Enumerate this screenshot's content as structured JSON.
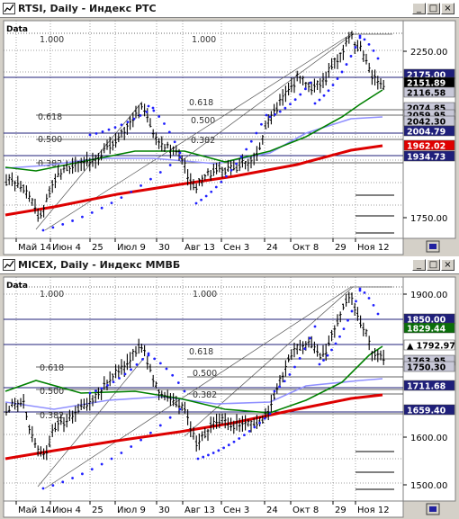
{
  "windows": [
    {
      "title": "RTSI, Daily - Индекс РТС",
      "data_label": "Data",
      "buttons": {
        "minimize": "_",
        "maximize": "□",
        "close": "×"
      },
      "scroll_icon": "scroll-right-icon",
      "fib_labels": [
        "1.000",
        "1.000",
        "0.618",
        "0.618",
        "0.500",
        "0.500",
        "0.382",
        "0.382"
      ],
      "price_ticks": [
        "2250.00",
        "1750.00"
      ],
      "price_tags": [
        {
          "text": "2175.00",
          "bg": "#1f1f7a",
          "fg": "#ffffff"
        },
        {
          "text": "2151.89",
          "bg": "#000000",
          "fg": "#ffffff"
        },
        {
          "text": "2116.58",
          "bg": "#c8c8d8",
          "fg": "#000000"
        },
        {
          "text": "2074.85",
          "bg": "#c8c8d8",
          "fg": "#000000"
        },
        {
          "text": "2059.95",
          "bg": "#c8c8d8",
          "fg": "#000000"
        },
        {
          "text": "2042.30",
          "bg": "#c8c8d8",
          "fg": "#000000"
        },
        {
          "text": "2004.79",
          "bg": "#1f1f7a",
          "fg": "#ffffff"
        },
        {
          "text": "1962.02",
          "bg": "#e00000",
          "fg": "#ffffff"
        },
        {
          "text": "1934.73",
          "bg": "#1f1f7a",
          "fg": "#ffffff"
        }
      ],
      "date_labels": [
        "Май 14",
        "Июн 4",
        "25",
        "Июл 9",
        "30",
        "Авг 13",
        "Сен 3",
        "24",
        "Окт 8",
        "29",
        "Ноя 12"
      ]
    },
    {
      "title": "MICEX, Daily - Индекс ММВБ",
      "data_label": "Data",
      "buttons": {
        "minimize": "_",
        "maximize": "□",
        "close": "×"
      },
      "scroll_icon": "scroll-right-icon",
      "fib_labels": [
        "1.000",
        "1.000",
        "0.618",
        "0.618",
        "0.500",
        "0.500",
        "0.382",
        "0.382"
      ],
      "price_ticks": [
        "1900.00",
        "1600.00",
        "1500.00"
      ],
      "price_tags": [
        {
          "text": "1850.00",
          "bg": "#1f1f7a",
          "fg": "#ffffff"
        },
        {
          "text": "1829.44",
          "bg": "#0a6e0a",
          "fg": "#ffffff"
        },
        {
          "text": "▲ 1792.97",
          "bg": "#ffffff",
          "fg": "#000000"
        },
        {
          "text": "1763.95",
          "bg": "#c8c8d8",
          "fg": "#000000"
        },
        {
          "text": "1750.30",
          "bg": "#c8c8d8",
          "fg": "#000000"
        },
        {
          "text": "1711.68",
          "bg": "#1f1f7a",
          "fg": "#ffffff"
        },
        {
          "text": "1659.40",
          "bg": "#1f1f7a",
          "fg": "#ffffff"
        }
      ],
      "date_labels": [
        "Май 14",
        "Июн 4",
        "25",
        "Июл 9",
        "30",
        "Авг 13",
        "Сен 3",
        "24",
        "Окт 8",
        "29",
        "Ноя 12"
      ]
    }
  ],
  "colors": {
    "price_bars": "#000000",
    "parabolic_sar": "#2020ff",
    "ma_fast": "#008000",
    "ma_mid": "#9090ff",
    "ma_slow": "#dd0000",
    "fib_level": "#1f1f7a",
    "grid": "#808080"
  }
}
